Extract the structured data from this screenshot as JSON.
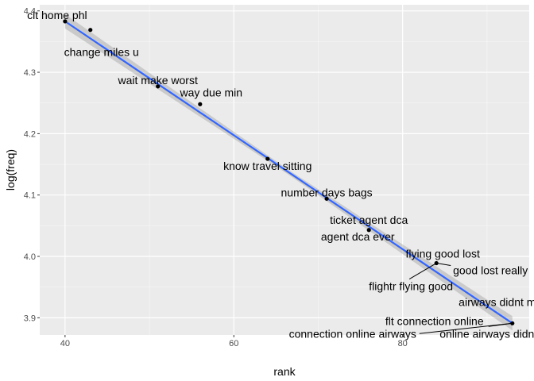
{
  "chart_data": {
    "type": "scatter",
    "xlabel": "rank",
    "ylabel": "log(freq)",
    "xlim": [
      37,
      95
    ],
    "ylim": [
      3.872,
      4.41
    ],
    "x_ticks": [
      40,
      60,
      80
    ],
    "y_ticks": [
      3.9,
      4.0,
      4.1,
      4.2,
      4.3,
      4.4
    ],
    "grid": true,
    "background_color": "#ebebeb",
    "point_color": "#000000",
    "fit_line_color": "#3366ff",
    "confidence_band_color": "#999999",
    "fit_line": {
      "x0": 40,
      "y0": 4.383,
      "x1": 93,
      "y1": 3.891
    },
    "points": [
      {
        "x": 40,
        "y": 4.383,
        "label": "clt home phl"
      },
      {
        "x": 43,
        "y": 4.369,
        "label": "change miles u"
      },
      {
        "x": 51,
        "y": 4.277,
        "label": "wait make worst"
      },
      {
        "x": 56,
        "y": 4.248,
        "label": "way due min"
      },
      {
        "x": 64,
        "y": 4.159,
        "label": "know travel sitting"
      },
      {
        "x": 71,
        "y": 4.094,
        "label": "number days bags"
      },
      {
        "x": 76,
        "y": 4.043,
        "label": "ticket agent dca"
      },
      {
        "x": 76,
        "y": 4.043,
        "label": "agent dca ever"
      },
      {
        "x": 84,
        "y": 3.989,
        "label": "flying good lost"
      },
      {
        "x": 84,
        "y": 3.989,
        "label": "good lost really"
      },
      {
        "x": 84,
        "y": 3.989,
        "label": "flightr flying good"
      },
      {
        "x": 93,
        "y": 3.891,
        "label": "airways didnt mins"
      },
      {
        "x": 93,
        "y": 3.891,
        "label": "flt connection online"
      },
      {
        "x": 93,
        "y": 3.891,
        "label": "connection online airways"
      },
      {
        "x": 93,
        "y": 3.891,
        "label": "online airways didnt"
      }
    ]
  }
}
